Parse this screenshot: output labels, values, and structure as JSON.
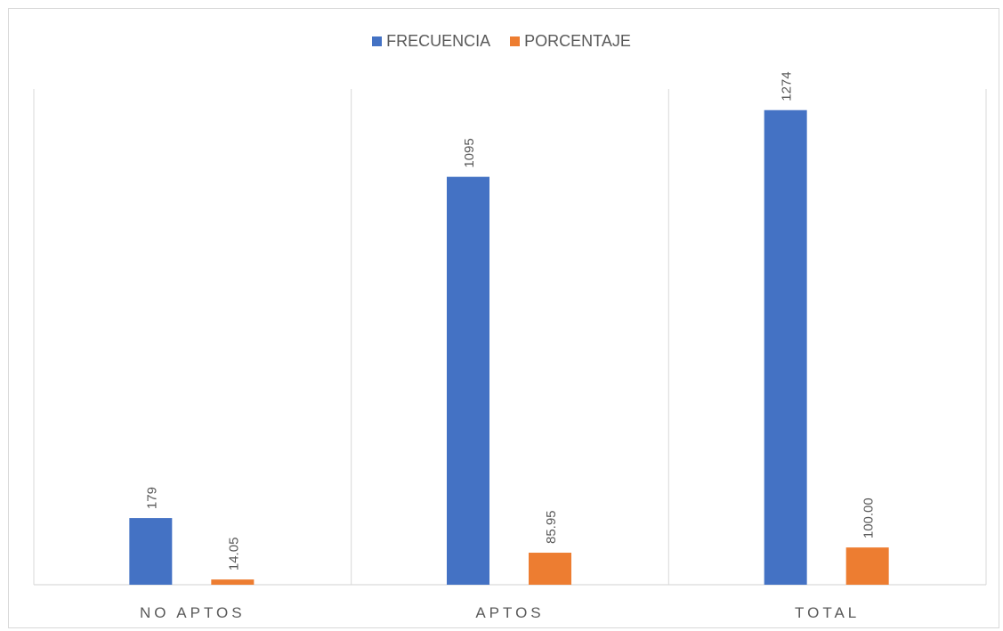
{
  "chart_data": {
    "type": "bar",
    "categories": [
      "NO APTOS",
      "APTOS",
      "TOTAL"
    ],
    "series": [
      {
        "name": "FRECUENCIA",
        "values": [
          179,
          1095,
          1274
        ],
        "labels": [
          "179",
          "1095",
          "1274"
        ],
        "color": "#4472C4"
      },
      {
        "name": "PORCENTAJE",
        "values": [
          14.05,
          85.95,
          100.0
        ],
        "labels": [
          "14.05",
          "85.95",
          "100.00"
        ],
        "color": "#ED7D31"
      }
    ],
    "ylim": [
      0,
      1400
    ],
    "legend_position": "top-center",
    "gridlines": "vertical category separators",
    "y_axis_visible": false
  }
}
